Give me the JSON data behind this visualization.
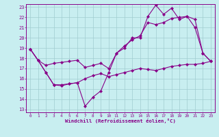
{
  "xlabel": "Windchill (Refroidissement éolien,°C)",
  "bg_color": "#c8eef0",
  "line_color": "#880088",
  "grid_color": "#a0ccd0",
  "xlim_min": -0.5,
  "xlim_max": 23.5,
  "ylim_min": 12.7,
  "ylim_max": 23.3,
  "xticks": [
    0,
    1,
    2,
    3,
    4,
    5,
    6,
    7,
    8,
    9,
    10,
    11,
    12,
    13,
    14,
    15,
    16,
    17,
    18,
    19,
    20,
    21,
    22,
    23
  ],
  "yticks": [
    13,
    14,
    15,
    16,
    17,
    18,
    19,
    20,
    21,
    22,
    23
  ],
  "line1_x": [
    0,
    1,
    2,
    3,
    4,
    5,
    6,
    7,
    8,
    9,
    10,
    11,
    12,
    13,
    14,
    15,
    16,
    17,
    18,
    19,
    20,
    21,
    22,
    23
  ],
  "line1_y": [
    18.9,
    17.8,
    16.6,
    15.4,
    15.4,
    15.5,
    15.6,
    13.3,
    14.2,
    14.8,
    16.6,
    18.5,
    19.0,
    20.0,
    20.0,
    22.1,
    23.2,
    22.3,
    22.9,
    21.8,
    22.1,
    21.0,
    18.5,
    17.7
  ],
  "line2_x": [
    0,
    1,
    2,
    3,
    4,
    5,
    6,
    7,
    8,
    9,
    10,
    11,
    12,
    13,
    14,
    15,
    16,
    17,
    18,
    19,
    20,
    21,
    22,
    23
  ],
  "line2_y": [
    18.9,
    17.8,
    17.3,
    17.5,
    17.6,
    17.7,
    17.8,
    17.1,
    17.3,
    17.5,
    17.0,
    18.5,
    19.2,
    19.8,
    20.2,
    21.5,
    21.3,
    21.5,
    21.9,
    22.0,
    22.1,
    21.8,
    18.5,
    17.7
  ],
  "line3_x": [
    0,
    1,
    2,
    3,
    4,
    5,
    6,
    7,
    8,
    9,
    10,
    11,
    12,
    13,
    14,
    15,
    16,
    17,
    18,
    19,
    20,
    21,
    22,
    23
  ],
  "line3_y": [
    18.9,
    17.8,
    16.6,
    15.4,
    15.3,
    15.5,
    15.6,
    16.0,
    16.3,
    16.5,
    16.2,
    16.4,
    16.6,
    16.8,
    17.0,
    16.9,
    16.8,
    17.0,
    17.2,
    17.3,
    17.4,
    17.4,
    17.5,
    17.7
  ]
}
